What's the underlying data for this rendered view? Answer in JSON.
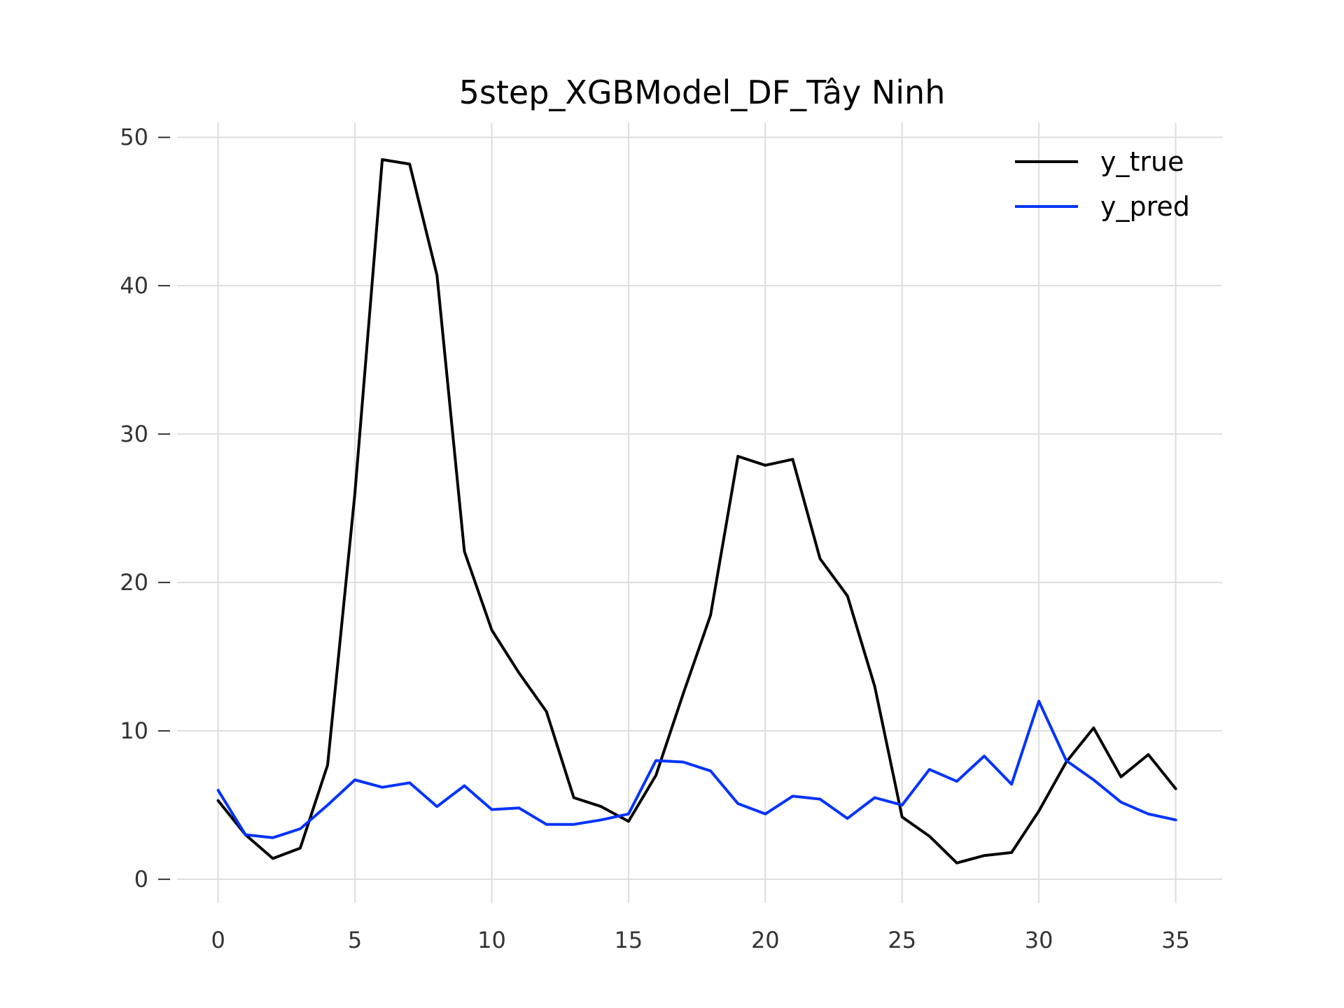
{
  "chart_data": {
    "type": "line",
    "title": "5step_XGBModel_DF_Tây Ninh",
    "xlabel": "",
    "ylabel": "",
    "x": [
      0,
      1,
      2,
      3,
      4,
      5,
      6,
      7,
      8,
      9,
      10,
      11,
      12,
      13,
      14,
      15,
      16,
      17,
      18,
      19,
      20,
      21,
      22,
      23,
      24,
      25,
      26,
      27,
      28,
      29,
      30,
      31,
      32,
      33,
      34,
      35
    ],
    "xlim": [
      -1.5,
      36.7
    ],
    "ylim": [
      -1.6,
      51
    ],
    "xticks": [
      0,
      5,
      10,
      15,
      20,
      25,
      30,
      35
    ],
    "yticks": [
      0,
      10,
      20,
      30,
      40,
      50
    ],
    "grid": true,
    "legend_position": "top-right",
    "series": [
      {
        "name": "y_true",
        "color": "#000000",
        "values": [
          5.3,
          3.0,
          1.4,
          2.1,
          7.7,
          26.0,
          48.5,
          48.2,
          40.7,
          22.1,
          16.8,
          13.9,
          11.3,
          5.5,
          4.9,
          3.9,
          7.0,
          12.5,
          17.8,
          28.5,
          27.9,
          28.3,
          21.6,
          19.1,
          13.0,
          4.2,
          2.9,
          1.1,
          1.6,
          1.8,
          4.6,
          7.9,
          10.2,
          6.9,
          8.4,
          6.1
        ]
      },
      {
        "name": "y_pred",
        "color": "#0033ff",
        "values": [
          6.0,
          3.0,
          2.8,
          3.4,
          5.0,
          6.7,
          6.2,
          6.5,
          4.9,
          6.3,
          4.7,
          4.8,
          3.7,
          3.7,
          4.0,
          4.4,
          8.0,
          7.9,
          7.3,
          5.1,
          4.4,
          5.6,
          5.4,
          4.1,
          5.5,
          5.0,
          7.4,
          6.6,
          8.3,
          6.4,
          12.0,
          8.0,
          6.7,
          5.2,
          4.4,
          4.0
        ]
      }
    ]
  }
}
